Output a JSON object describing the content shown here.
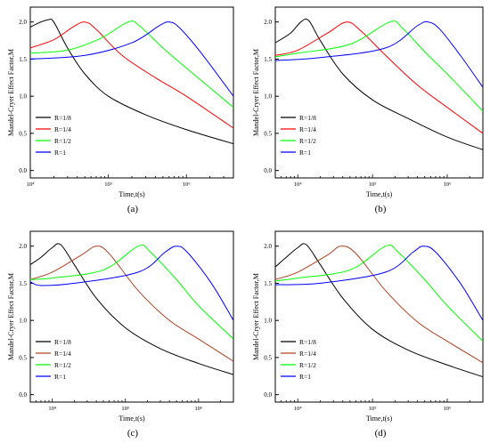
{
  "figure": {
    "panel_labels": [
      "(a)",
      "(b)",
      "(c)",
      "(d)"
    ]
  },
  "chart_data": [
    {
      "type": "line",
      "panel": "(a)",
      "xlabel": "Time,t(s)",
      "ylabel": "Mandel-Cryer Effect Factor,M",
      "x_scale": "log",
      "xlim": [
        10000,
        4000000
      ],
      "ylim": [
        -0.1,
        2.2
      ],
      "xticks": [
        {
          "value": 10000,
          "label": "10⁴"
        },
        {
          "value": 100000,
          "label": "10⁵"
        },
        {
          "value": 1000000,
          "label": "10⁶"
        }
      ],
      "yticks": [
        0.0,
        0.5,
        1.0,
        1.5,
        2.0
      ],
      "legend_position": "bottom-left",
      "series": [
        {
          "name": "R=1/8",
          "color": "#000000",
          "x": [
            10000,
            13000,
            17000,
            20000,
            30000,
            50000,
            100000,
            300000,
            1000000,
            4000000
          ],
          "y": [
            1.93,
            1.99,
            2.03,
            2.0,
            1.65,
            1.3,
            1.0,
            0.75,
            0.55,
            0.36
          ]
        },
        {
          "name": "R=1/4",
          "color": "#ff0000",
          "x": [
            10000,
            20000,
            35000,
            50000,
            70000,
            150000,
            400000,
            1000000,
            4000000
          ],
          "y": [
            1.65,
            1.76,
            1.93,
            2.0,
            1.9,
            1.55,
            1.25,
            1.0,
            0.57
          ]
        },
        {
          "name": "R=1/2",
          "color": "#00ff00",
          "x": [
            10000,
            30000,
            80000,
            180000,
            250000,
            500000,
            1000000,
            4000000
          ],
          "y": [
            1.58,
            1.62,
            1.78,
            2.0,
            1.95,
            1.65,
            1.38,
            0.85
          ]
        },
        {
          "name": "R=1",
          "color": "#0000ff",
          "x": [
            10000,
            50000,
            200000,
            450000,
            600000,
            800000,
            1500000,
            4000000
          ],
          "y": [
            1.5,
            1.55,
            1.72,
            1.95,
            2.0,
            1.93,
            1.6,
            1.0
          ]
        }
      ]
    },
    {
      "type": "line",
      "panel": "(b)",
      "xlabel": "Time,t(s)",
      "ylabel": "Mandel-Cryer Effect Factor,M",
      "x_scale": "log",
      "xlim": [
        5000,
        3000000
      ],
      "ylim": [
        -0.1,
        2.2
      ],
      "xticks": [
        {
          "value": 10000,
          "label": "10⁴"
        },
        {
          "value": 100000,
          "label": "10⁵"
        },
        {
          "value": 1000000,
          "label": "10⁶"
        }
      ],
      "yticks": [
        0.0,
        0.5,
        1.0,
        1.5,
        2.0
      ],
      "legend_position": "bottom-left",
      "series": [
        {
          "name": "R=1/8",
          "color": "#000000",
          "x": [
            5000,
            8000,
            11000,
            14000,
            20000,
            40000,
            100000,
            300000,
            1000000,
            3000000
          ],
          "y": [
            1.72,
            1.85,
            2.0,
            2.02,
            1.75,
            1.3,
            0.95,
            0.7,
            0.45,
            0.28
          ]
        },
        {
          "name": "R=1/4",
          "color": "#ff0000",
          "x": [
            5000,
            10000,
            25000,
            45000,
            70000,
            150000,
            400000,
            1000000,
            3000000
          ],
          "y": [
            1.55,
            1.62,
            1.85,
            2.0,
            1.88,
            1.55,
            1.15,
            0.85,
            0.5
          ]
        },
        {
          "name": "R=1/2",
          "color": "#00ff00",
          "x": [
            5000,
            10000,
            50000,
            170000,
            250000,
            500000,
            1000000,
            3000000
          ],
          "y": [
            1.53,
            1.58,
            1.7,
            2.0,
            1.92,
            1.6,
            1.3,
            0.8
          ]
        },
        {
          "name": "R=1",
          "color": "#0000ff",
          "x": [
            5000,
            20000,
            150000,
            400000,
            560000,
            800000,
            1500000,
            3000000
          ],
          "y": [
            1.48,
            1.52,
            1.65,
            1.95,
            2.0,
            1.9,
            1.55,
            1.12
          ]
        }
      ]
    },
    {
      "type": "line",
      "panel": "(c)",
      "xlabel": "Time,t(s)",
      "ylabel": "Mandel-Cryer Effect Factor,M",
      "x_scale": "log",
      "xlim": [
        5000,
        3000000
      ],
      "ylim": [
        -0.1,
        2.2
      ],
      "xticks": [
        {
          "value": 10000,
          "label": "10⁴"
        },
        {
          "value": 100000,
          "label": "10⁵"
        },
        {
          "value": 1000000,
          "label": "10⁶"
        }
      ],
      "yticks": [
        0.0,
        0.5,
        1.0,
        1.5,
        2.0
      ],
      "legend_position": "bottom-left",
      "series": [
        {
          "name": "R=1/8",
          "color": "#000000",
          "x": [
            5000,
            7000,
            10000,
            13000,
            20000,
            40000,
            100000,
            300000,
            1000000,
            3000000
          ],
          "y": [
            1.75,
            1.85,
            1.98,
            2.02,
            1.75,
            1.3,
            0.9,
            0.62,
            0.42,
            0.27
          ]
        },
        {
          "name": "R=1/4",
          "color": "#b04020",
          "x": [
            5000,
            10000,
            25000,
            40000,
            60000,
            150000,
            400000,
            1000000,
            3000000
          ],
          "y": [
            1.55,
            1.65,
            1.88,
            2.0,
            1.9,
            1.4,
            1.0,
            0.75,
            0.45
          ]
        },
        {
          "name": "R=1/2",
          "color": "#00ff00",
          "x": [
            5000,
            10000,
            50000,
            150000,
            220000,
            500000,
            1000000,
            3000000
          ],
          "y": [
            1.55,
            1.57,
            1.68,
            2.0,
            1.92,
            1.55,
            1.2,
            0.75
          ]
        },
        {
          "name": "R=1",
          "color": "#0000ff",
          "x": [
            5000,
            7000,
            20000,
            150000,
            350000,
            500000,
            700000,
            1500000,
            3000000
          ],
          "y": [
            1.52,
            1.47,
            1.5,
            1.65,
            1.92,
            2.0,
            1.92,
            1.5,
            1.0
          ]
        }
      ]
    },
    {
      "type": "line",
      "panel": "(d)",
      "xlabel": "Time,t(s)",
      "ylabel": "Mandel-Cryer Effect Factor,M",
      "x_scale": "log",
      "xlim": [
        5000,
        3000000
      ],
      "ylim": [
        -0.1,
        2.2
      ],
      "xticks": [
        {
          "value": 10000,
          "label": "10⁴"
        },
        {
          "value": 100000,
          "label": "10⁵"
        },
        {
          "value": 1000000,
          "label": "10⁶"
        }
      ],
      "yticks": [
        0.0,
        0.5,
        1.0,
        1.5,
        2.0
      ],
      "legend_position": "bottom-left",
      "series": [
        {
          "name": "R=1/8",
          "color": "#000000",
          "x": [
            5000,
            7000,
            10000,
            13000,
            20000,
            40000,
            100000,
            300000,
            1000000,
            3000000
          ],
          "y": [
            1.72,
            1.85,
            1.98,
            2.02,
            1.75,
            1.3,
            0.88,
            0.6,
            0.4,
            0.24
          ]
        },
        {
          "name": "R=1/4",
          "color": "#b04020",
          "x": [
            5000,
            10000,
            25000,
            38000,
            60000,
            150000,
            400000,
            1000000,
            3000000
          ],
          "y": [
            1.55,
            1.65,
            1.88,
            2.0,
            1.9,
            1.4,
            0.98,
            0.72,
            0.43
          ]
        },
        {
          "name": "R=1/2",
          "color": "#00ff00",
          "x": [
            5000,
            10000,
            50000,
            150000,
            220000,
            500000,
            1000000,
            3000000
          ],
          "y": [
            1.53,
            1.57,
            1.68,
            2.0,
            1.92,
            1.55,
            1.2,
            0.72
          ]
        },
        {
          "name": "R=1",
          "color": "#0000ff",
          "x": [
            5000,
            20000,
            150000,
            350000,
            480000,
            700000,
            1500000,
            3000000
          ],
          "y": [
            1.48,
            1.5,
            1.65,
            1.92,
            2.0,
            1.92,
            1.5,
            1.0
          ]
        }
      ]
    }
  ]
}
